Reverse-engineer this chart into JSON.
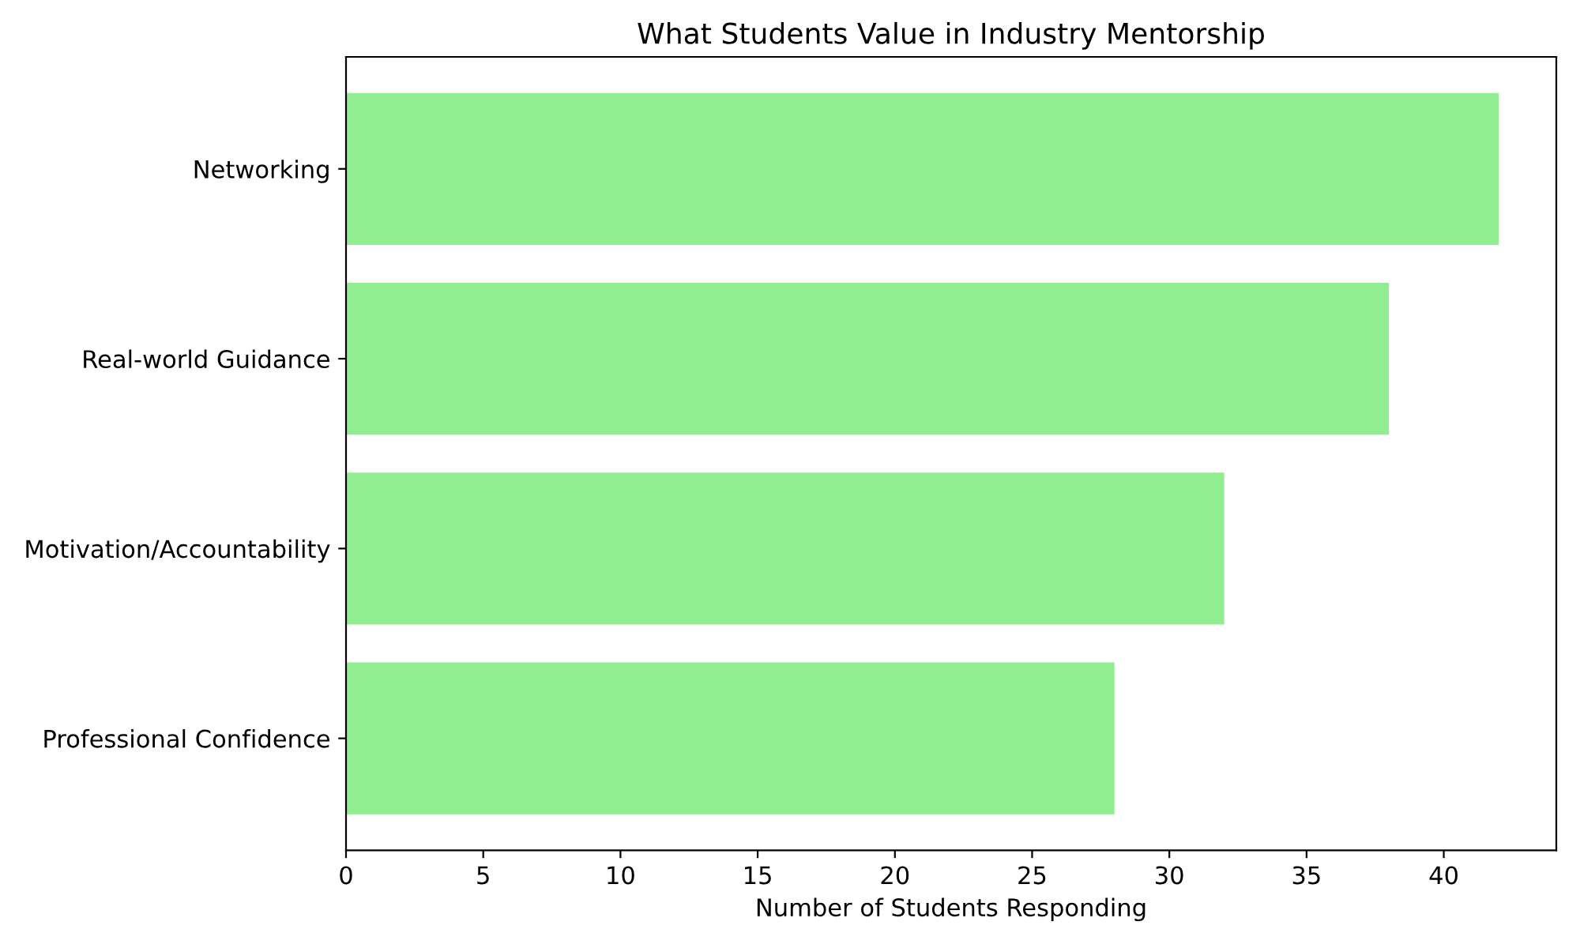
{
  "chart_data": {
    "type": "bar",
    "orientation": "horizontal",
    "title": "What Students Value in Industry Mentorship",
    "xlabel": "Number of Students Responding",
    "categories": [
      "Networking",
      "Real-world Guidance",
      "Motivation/Accountability",
      "Professional Confidence"
    ],
    "values": [
      42,
      38,
      32,
      28
    ],
    "color": "#90ee90",
    "xlim": [
      0,
      44.1
    ],
    "xticks": [
      0,
      5,
      10,
      15,
      20,
      25,
      30,
      35,
      40
    ]
  }
}
